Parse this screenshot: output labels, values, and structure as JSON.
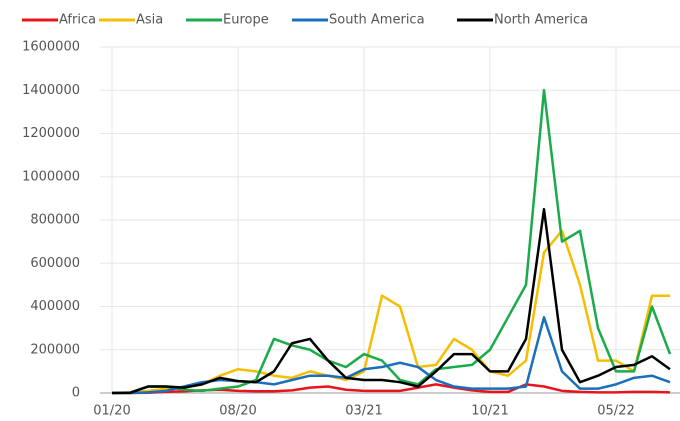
{
  "chart_data": {
    "type": "line",
    "categories": [
      "01/20",
      null,
      null,
      null,
      null,
      null,
      null,
      "08/20",
      null,
      null,
      null,
      null,
      null,
      null,
      "03/21",
      null,
      null,
      null,
      null,
      null,
      null,
      "10/21",
      null,
      null,
      null,
      null,
      null,
      null,
      "05/22",
      null,
      null,
      null
    ],
    "series": [
      {
        "name": "Africa",
        "color": "#e8141c",
        "values": [
          0,
          0,
          1000,
          5000,
          8000,
          12000,
          15000,
          10000,
          8000,
          8000,
          12000,
          25000,
          30000,
          15000,
          10000,
          10000,
          10000,
          25000,
          40000,
          25000,
          12000,
          5000,
          5000,
          40000,
          30000,
          10000,
          5000,
          3000,
          3000,
          5000,
          5000,
          3000
        ]
      },
      {
        "name": "Asia",
        "color": "#f6be00",
        "values": [
          0,
          1000,
          10000,
          20000,
          25000,
          40000,
          80000,
          110000,
          100000,
          80000,
          70000,
          100000,
          80000,
          60000,
          100000,
          450000,
          400000,
          120000,
          130000,
          250000,
          200000,
          100000,
          80000,
          150000,
          650000,
          750000,
          500000,
          150000,
          150000,
          100000,
          450000,
          450000
        ]
      },
      {
        "name": "Europe",
        "color": "#1aab4b",
        "values": [
          0,
          2000,
          30000,
          30000,
          15000,
          10000,
          20000,
          30000,
          60000,
          250000,
          220000,
          200000,
          150000,
          120000,
          180000,
          150000,
          60000,
          40000,
          110000,
          120000,
          130000,
          200000,
          350000,
          500000,
          1400000,
          700000,
          750000,
          300000,
          100000,
          100000,
          400000,
          180000
        ]
      },
      {
        "name": "South America",
        "color": "#1a6fbd",
        "values": [
          0,
          0,
          3000,
          10000,
          30000,
          50000,
          60000,
          55000,
          50000,
          40000,
          60000,
          80000,
          80000,
          70000,
          110000,
          120000,
          140000,
          120000,
          60000,
          30000,
          20000,
          20000,
          20000,
          30000,
          350000,
          100000,
          20000,
          20000,
          40000,
          70000,
          80000,
          50000
        ]
      },
      {
        "name": "North America",
        "color": "#000000",
        "values": [
          0,
          1000,
          30000,
          30000,
          25000,
          40000,
          70000,
          55000,
          50000,
          100000,
          230000,
          250000,
          150000,
          70000,
          60000,
          60000,
          50000,
          30000,
          100000,
          180000,
          180000,
          100000,
          100000,
          250000,
          850000,
          200000,
          50000,
          80000,
          120000,
          130000,
          170000,
          110000
        ]
      }
    ],
    "ylim": [
      0,
      1600000
    ],
    "yticks": [
      0,
      200000,
      400000,
      600000,
      800000,
      1000000,
      1200000,
      1400000,
      1600000
    ],
    "grid": true
  }
}
